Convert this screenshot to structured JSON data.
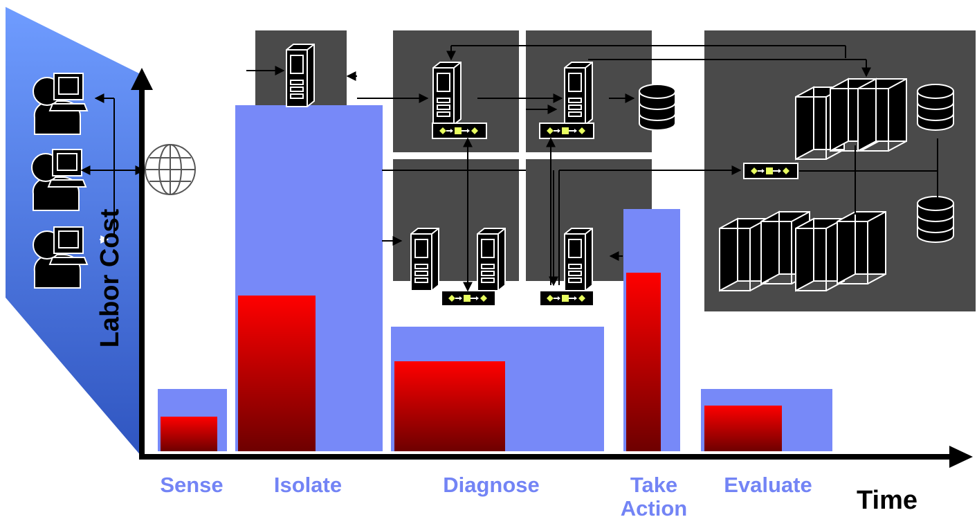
{
  "axes": {
    "y_label": "Labor Cost",
    "x_label": "Time"
  },
  "phases": [
    {
      "id": "sense",
      "label": "Sense",
      "total": 90,
      "labor": 50
    },
    {
      "id": "isolate",
      "label": "Isolate",
      "total": 500,
      "labor": 225
    },
    {
      "id": "diagnose",
      "label": "Diagnose",
      "total": 180,
      "labor": 130
    },
    {
      "id": "take-action",
      "label": "Take\nAction",
      "total": 350,
      "labor": 258
    },
    {
      "id": "evaluate",
      "label": "Evaluate",
      "total": 90,
      "labor": 66
    }
  ],
  "colors": {
    "total_bar": "#7789f8",
    "labor_bar_top": "#ff0000",
    "labor_bar_bottom": "#6e0000",
    "panel": "#4a4a4a",
    "user_panel_top": "#4f6fd8",
    "user_panel_bottom": "#1f3fa0",
    "phase_text": "#7384f5"
  },
  "icons": [
    "user-terminal-icon",
    "globe-icon",
    "server-tower-icon",
    "database-icon",
    "mainframe-icon",
    "message-queue-icon"
  ]
}
